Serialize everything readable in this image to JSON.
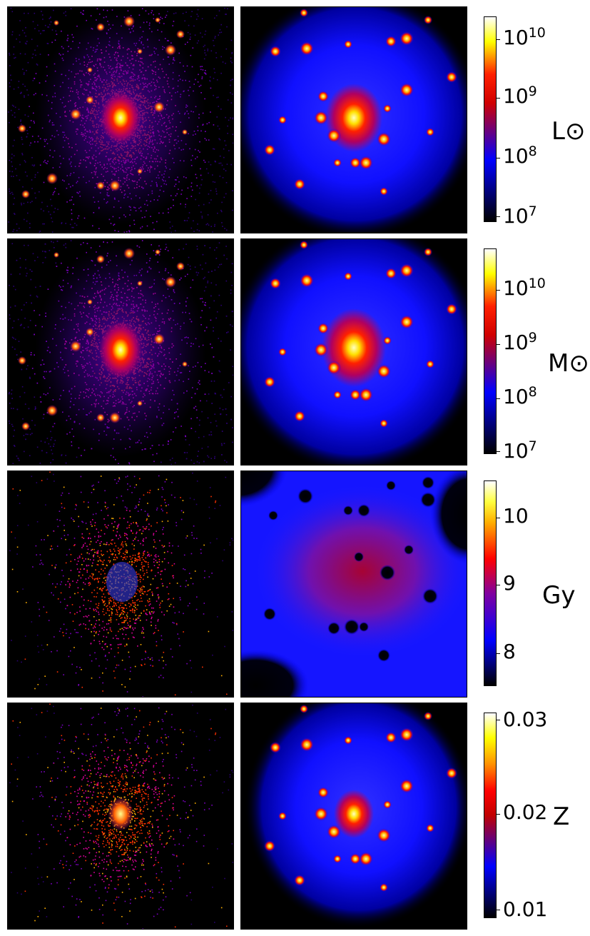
{
  "colors": {
    "left_map": [
      "#000000",
      "#2a0070",
      "#7a00c0",
      "#e000a0",
      "#ff3000",
      "#ffb000",
      "#ffffe8"
    ],
    "right_map": [
      "#000000",
      "#0000ff",
      "#cc0000",
      "#ff0000",
      "#ffff00",
      "#ffffff"
    ]
  },
  "rows": [
    {
      "id": "luminosity",
      "unit": "L⊙",
      "ticks": [
        {
          "base": "10",
          "exp": "10"
        },
        {
          "base": "10",
          "exp": "9"
        },
        {
          "base": "10",
          "exp": "8"
        },
        {
          "base": "10",
          "exp": "7"
        }
      ]
    },
    {
      "id": "mass",
      "unit": "M⊙",
      "ticks": [
        {
          "base": "10",
          "exp": "10"
        },
        {
          "base": "10",
          "exp": "9"
        },
        {
          "base": "10",
          "exp": "8"
        },
        {
          "base": "10",
          "exp": "7"
        }
      ]
    },
    {
      "id": "age",
      "unit": "Gy",
      "ticks": [
        {
          "base": "10",
          "exp": ""
        },
        {
          "base": "9",
          "exp": ""
        },
        {
          "base": "8",
          "exp": ""
        }
      ]
    },
    {
      "id": "metallicity",
      "unit": "Z",
      "ticks": [
        {
          "base": "0.03",
          "exp": ""
        },
        {
          "base": "0.02",
          "exp": ""
        },
        {
          "base": "0.01",
          "exp": ""
        }
      ]
    }
  ]
}
